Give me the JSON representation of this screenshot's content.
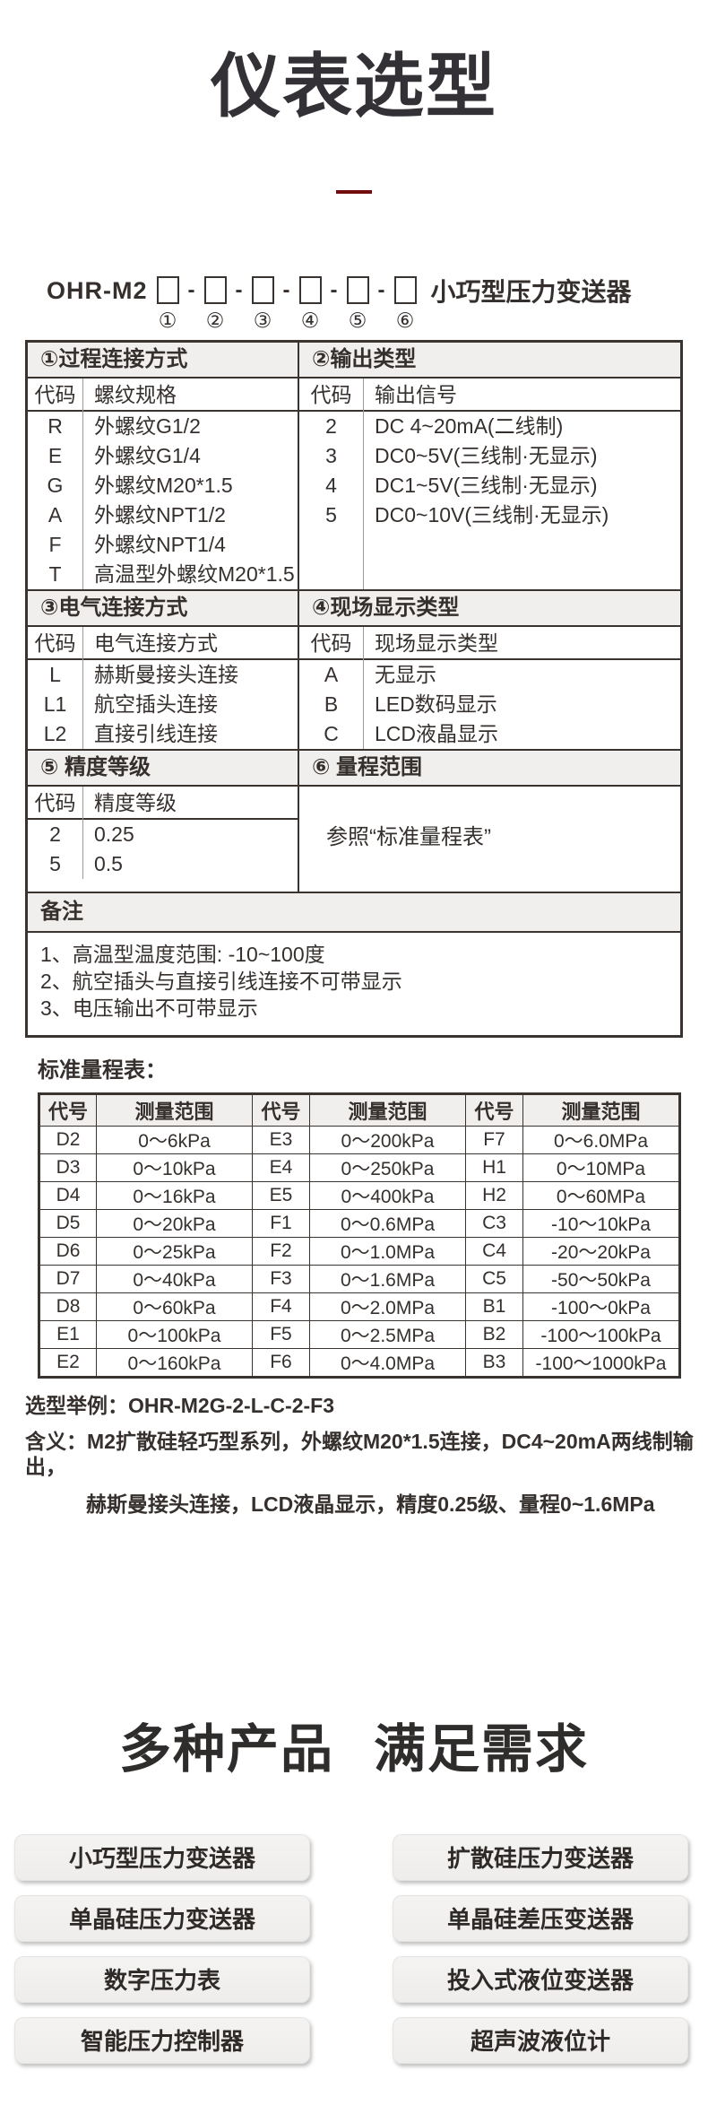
{
  "colors": {
    "accent_red": "#730c0c",
    "table_border": "#3a3430",
    "header_bg": "#f0efed"
  },
  "header": {
    "title": "仪表选型"
  },
  "model": {
    "prefix": "OHR-M2",
    "suffix": "小巧型压力变送器",
    "positions": [
      "①",
      "②",
      "③",
      "④",
      "⑤",
      "⑥"
    ]
  },
  "sections": [
    {
      "title": "①过程连接方式",
      "code_header": "代码",
      "desc_header": "螺纹规格",
      "rows": [
        [
          "R",
          "外螺纹G1/2"
        ],
        [
          "E",
          "外螺纹G1/4"
        ],
        [
          "G",
          "外螺纹M20*1.5"
        ],
        [
          "A",
          "外螺纹NPT1/2"
        ],
        [
          "F",
          "外螺纹NPT1/4"
        ],
        [
          "T",
          "高温型外螺纹M20*1.5"
        ]
      ]
    },
    {
      "title": "②输出类型",
      "code_header": "代码",
      "desc_header": "输出信号",
      "rows": [
        [
          "2",
          "DC 4~20mA(二线制)"
        ],
        [
          "3",
          "DC0~5V(三线制·无显示)"
        ],
        [
          "4",
          "DC1~5V(三线制·无显示)"
        ],
        [
          "5",
          "DC0~10V(三线制·无显示)"
        ]
      ]
    },
    {
      "title": "③电气连接方式",
      "code_header": "代码",
      "desc_header": "电气连接方式",
      "rows": [
        [
          "L",
          "赫斯曼接头连接"
        ],
        [
          "L1",
          "航空插头连接"
        ],
        [
          "L2",
          "直接引线连接"
        ]
      ]
    },
    {
      "title": "④现场显示类型",
      "code_header": "代码",
      "desc_header": "现场显示类型",
      "rows": [
        [
          "A",
          "无显示"
        ],
        [
          "B",
          "LED数码显示"
        ],
        [
          "C",
          "LCD液晶显示"
        ]
      ]
    },
    {
      "title": "⑤ 精度等级",
      "code_header": "代码",
      "desc_header": "精度等级",
      "rows": [
        [
          "2",
          "0.25"
        ],
        [
          "5",
          "0.5"
        ]
      ]
    }
  ],
  "section6": {
    "title": "⑥ 量程范围",
    "note": "参照“标准量程表”"
  },
  "remarks": {
    "title": "备注",
    "lines": [
      "1、高温型温度范围: -10~100度",
      "2、航空插头与直接引线连接不可带显示",
      "3、电压输出不可带显示"
    ]
  },
  "range_table": {
    "label": "标准量程表：",
    "headers": [
      "代号",
      "测量范围",
      "代号",
      "测量范围",
      "代号",
      "测量范围"
    ],
    "rows": [
      [
        "D2",
        "0～6kPa",
        "E3",
        "0～200kPa",
        "F7",
        "0～6.0MPa"
      ],
      [
        "D3",
        "0～10kPa",
        "E4",
        "0～250kPa",
        "H1",
        "0～10MPa"
      ],
      [
        "D4",
        "0～16kPa",
        "E5",
        "0～400kPa",
        "H2",
        "0～60MPa"
      ],
      [
        "D5",
        "0～20kPa",
        "F1",
        "0～0.6MPa",
        "C3",
        "-10～10kPa"
      ],
      [
        "D6",
        "0～25kPa",
        "F2",
        "0～1.0MPa",
        "C4",
        "-20～20kPa"
      ],
      [
        "D7",
        "0～40kPa",
        "F3",
        "0～1.6MPa",
        "C5",
        "-50～50kPa"
      ],
      [
        "D8",
        "0～60kPa",
        "F4",
        "0～2.0MPa",
        "B1",
        "-100～0kPa"
      ],
      [
        "E1",
        "0～100kPa",
        "F5",
        "0～2.5MPa",
        "B2",
        "-100～100kPa"
      ],
      [
        "E2",
        "0～160kPa",
        "F6",
        "0～4.0MPa",
        "B3",
        "-100～1000kPa"
      ]
    ]
  },
  "example": {
    "selection": "选型举例：OHR-M2G-2-L-C-2-F3",
    "meaning_line1": "含义：M2扩散硅轻巧型系列，外螺纹M20*1.5连接，DC4~20mA两线制输出，",
    "meaning_line2": "赫斯曼接头连接，LCD液晶显示，精度0.25级、量程0~1.6MPa"
  },
  "products": {
    "heading": [
      "多种产品",
      "满足需求"
    ],
    "items": [
      "小巧型压力变送器",
      "扩散硅压力变送器",
      "单晶硅压力变送器",
      "单晶硅差压变送器",
      "数字压力表",
      "投入式液位变送器",
      "智能压力控制器",
      "超声波液位计"
    ]
  }
}
